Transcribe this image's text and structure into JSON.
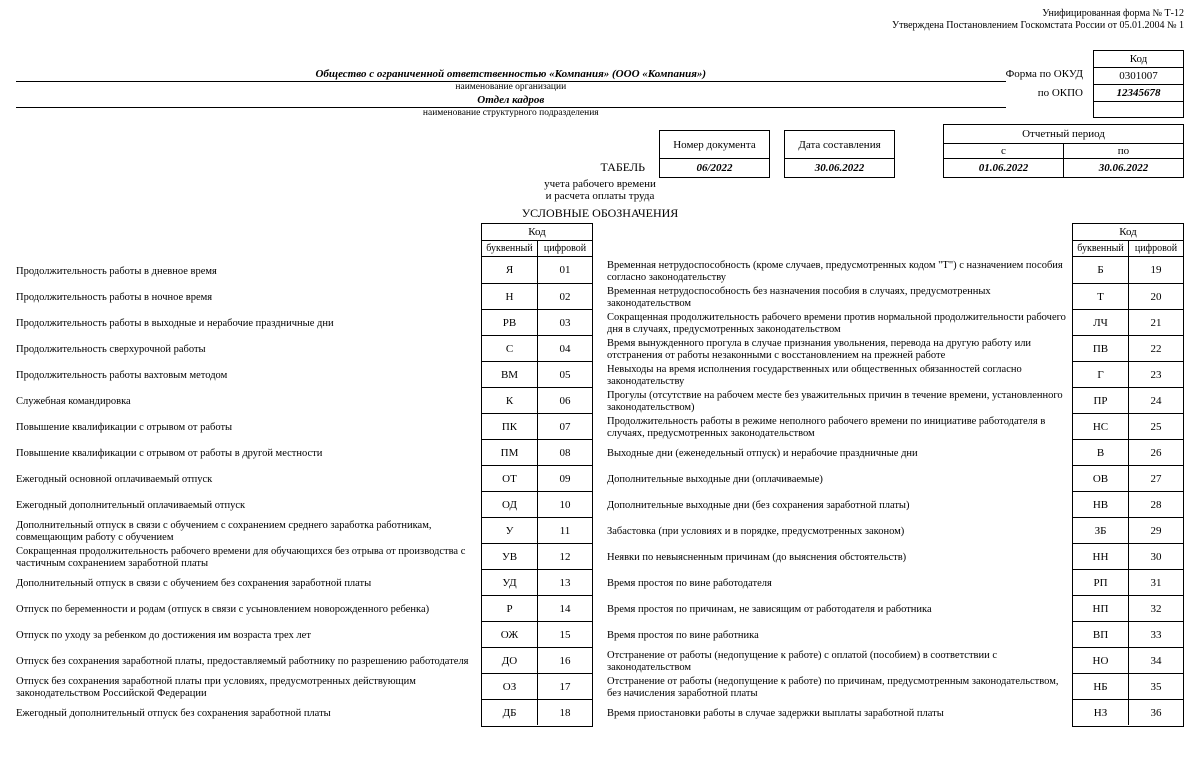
{
  "meta": {
    "formLine1": "Унифицированная форма № Т-12",
    "formLine2": "Утверждена Постановлением Госкомстата России от 05.01.2004 № 1"
  },
  "codeTable": {
    "header": "Код",
    "rows": [
      {
        "label": "Форма по ОКУД",
        "value": "0301007"
      },
      {
        "label": "по ОКПО",
        "value": "12345678"
      }
    ],
    "blankRow": " "
  },
  "org": {
    "name": "Общество с ограниченной ответственностью «Компания» (ООО «Компания»)",
    "nameSub": "наименование организации",
    "dept": "Отдел кадров",
    "deptSub": "наименование структурного подразделения"
  },
  "docInfo": {
    "tabel": "ТАБЕЛЬ",
    "numHeader": "Номер документа",
    "numValue": "06/2022",
    "dateHeader": "Дата составления",
    "dateValue": "30.06.2022",
    "periodHeader": "Отчетный период",
    "periodFromH": "с",
    "periodToH": "по",
    "periodFrom": "01.06.2022",
    "periodTo": "30.06.2022",
    "sub1": "учета рабочего времени",
    "sub2": "и расчета оплаты труда"
  },
  "legend": {
    "title": "УСЛОВНЫЕ ОБОЗНАЧЕНИЯ",
    "codeHeader": "Код",
    "letterHeader": "буквенный",
    "numberHeader": "цифровой",
    "left": [
      {
        "desc": "Продолжительность работы в дневное время",
        "letter": "Я",
        "num": "01"
      },
      {
        "desc": "Продолжительность работы в ночное время",
        "letter": "Н",
        "num": "02"
      },
      {
        "desc": "Продолжительность работы в выходные и нерабочие праздничные дни",
        "letter": "РВ",
        "num": "03"
      },
      {
        "desc": "Продолжительность сверхурочной работы",
        "letter": "С",
        "num": "04"
      },
      {
        "desc": "Продолжительность работы вахтовым методом",
        "letter": "ВМ",
        "num": "05"
      },
      {
        "desc": "Служебная командировка",
        "letter": "К",
        "num": "06"
      },
      {
        "desc": "Повышение квалификации с отрывом от работы",
        "letter": "ПК",
        "num": "07"
      },
      {
        "desc": "Повышение квалификации с отрывом от работы в другой местности",
        "letter": "ПМ",
        "num": "08"
      },
      {
        "desc": "Ежегодный основной оплачиваемый отпуск",
        "letter": "ОТ",
        "num": "09"
      },
      {
        "desc": "Ежегодный дополнительный оплачиваемый отпуск",
        "letter": "ОД",
        "num": "10"
      },
      {
        "desc": "Дополнительный отпуск в связи с обучением с сохранением среднего заработка работникам, совмещающим работу с обучением",
        "letter": "У",
        "num": "11"
      },
      {
        "desc": "Сокращенная продолжительность рабочего времени для обучающихся без отрыва от производства с частичным сохранением заработной платы",
        "letter": "УВ",
        "num": "12"
      },
      {
        "desc": "Дополнительный отпуск в связи с обучением без сохранения заработной платы",
        "letter": "УД",
        "num": "13"
      },
      {
        "desc": "Отпуск по беременности и родам (отпуск в связи с усыновлением новорожденного ребенка)",
        "letter": "Р",
        "num": "14"
      },
      {
        "desc": "Отпуск по уходу за ребенком до достижения им возраста трех лет",
        "letter": "ОЖ",
        "num": "15"
      },
      {
        "desc": "Отпуск без сохранения заработной платы, предоставляемый работнику по разрешению работодателя",
        "letter": "ДО",
        "num": "16"
      },
      {
        "desc": "Отпуск без сохранения заработной платы при условиях, предусмотренных действующим законодательством Российской Федерации",
        "letter": "ОЗ",
        "num": "17"
      },
      {
        "desc": "Ежегодный дополнительный отпуск без сохранения заработной платы",
        "letter": "ДБ",
        "num": "18"
      }
    ],
    "right": [
      {
        "desc": "Временная нетрудоспособность (кроме случаев, предусмотренных кодом \"Т\") с назначением пособия согласно законодательству",
        "letter": "Б",
        "num": "19"
      },
      {
        "desc": "Временная нетрудоспособность без назначения пособия в случаях, предусмотренных законодательством",
        "letter": "Т",
        "num": "20"
      },
      {
        "desc": "Сокращенная продолжительность рабочего времени против нормальной продолжительности рабочего дня в случаях, предусмотренных законодательством",
        "letter": "ЛЧ",
        "num": "21"
      },
      {
        "desc": "Время вынужденного прогула в случае признания увольнения, перевода на другую работу или отстранения от работы незаконными с восстановлением на прежней работе",
        "letter": "ПВ",
        "num": "22"
      },
      {
        "desc": "Невыходы на время исполнения государственных или общественных обязанностей согласно законодательству",
        "letter": "Г",
        "num": "23"
      },
      {
        "desc": "Прогулы (отсутствие на рабочем месте без уважительных причин в течение времени, установленного законодательством)",
        "letter": "ПР",
        "num": "24"
      },
      {
        "desc": "Продолжительность работы в режиме неполного рабочего времени по инициативе работодателя в случаях, предусмотренных законодательством",
        "letter": "НС",
        "num": "25"
      },
      {
        "desc": "Выходные дни (еженедельный отпуск) и нерабочие праздничные дни",
        "letter": "В",
        "num": "26"
      },
      {
        "desc": "Дополнительные выходные дни (оплачиваемые)",
        "letter": "ОВ",
        "num": "27"
      },
      {
        "desc": "Дополнительные выходные дни (без сохранения заработной платы)",
        "letter": "НВ",
        "num": "28"
      },
      {
        "desc": "Забастовка (при условиях и в порядке, предусмотренных законом)",
        "letter": "ЗБ",
        "num": "29"
      },
      {
        "desc": "Неявки по невыясненным причинам (до выяснения обстоятельств)",
        "letter": "НН",
        "num": "30"
      },
      {
        "desc": "Время простоя по вине работодателя",
        "letter": "РП",
        "num": "31"
      },
      {
        "desc": "Время простоя по причинам, не зависящим от работодателя и работника",
        "letter": "НП",
        "num": "32"
      },
      {
        "desc": "Время простоя по вине работника",
        "letter": "ВП",
        "num": "33"
      },
      {
        "desc": "Отстранение от работы (недопущение к работе) с оплатой (пособием) в соответствии с законодательством",
        "letter": "НО",
        "num": "34"
      },
      {
        "desc": "Отстранение от работы (недопущение к работе) по причинам, предусмотренным законодательством, без начисления заработной платы",
        "letter": "НБ",
        "num": "35"
      },
      {
        "desc": "Время приостановки работы в случае задержки выплаты заработной платы",
        "letter": "НЗ",
        "num": "36"
      }
    ]
  }
}
